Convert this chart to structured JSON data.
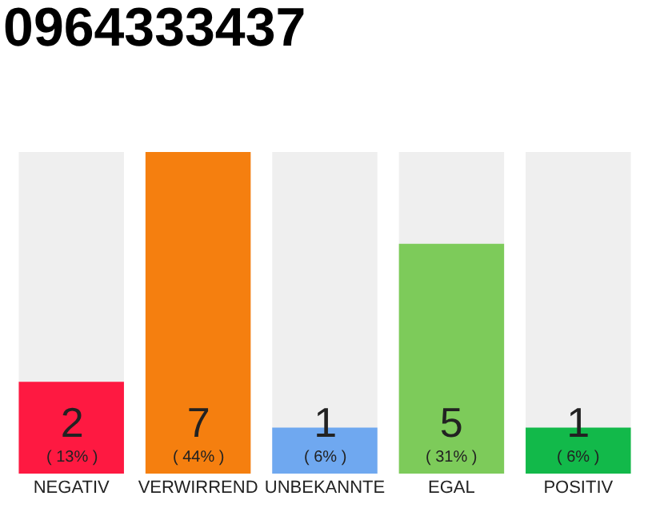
{
  "chart_data": {
    "type": "bar",
    "title": "0964333437",
    "categories": [
      "NEGATIV",
      "VERWIRREND",
      "UNBEKANNTE",
      "EGAL",
      "POSITIV"
    ],
    "values": [
      2,
      7,
      1,
      5,
      1
    ],
    "colors": [
      "#fe1941",
      "#f57f0f",
      "#6fa8f0",
      "#7dcb5a",
      "#12b94a"
    ],
    "value_labels": [
      "2\n( 13% )",
      "7\n( 44% )",
      "1\n( 6% )",
      "5\n( 31% )",
      "1\n( 6% )"
    ],
    "ylim": [
      0,
      7
    ],
    "grid": false,
    "legend": false
  }
}
